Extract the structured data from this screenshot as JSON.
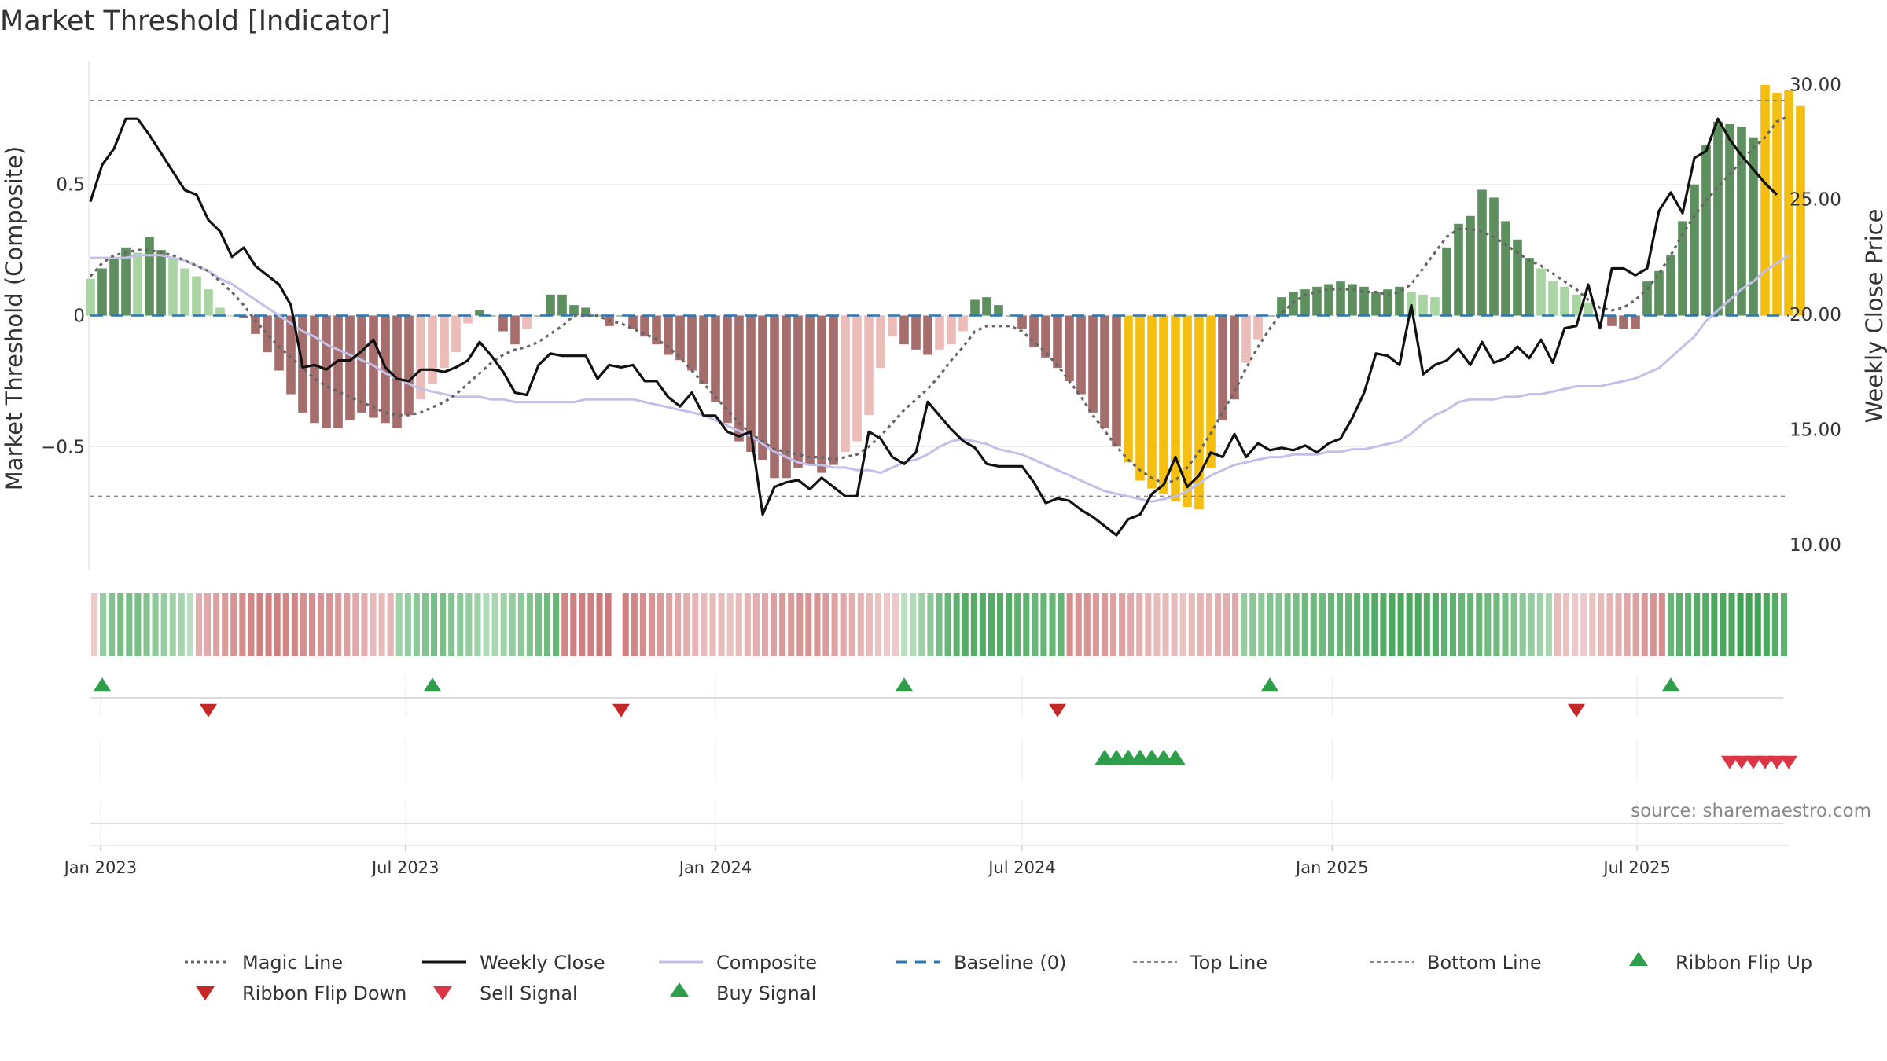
{
  "chart_data": {
    "type": "bar",
    "title": "Market Threshold [Indicator]",
    "ylabel_left": "Market Threshold (Composite)",
    "ylabel_right": "Weekly Close Price",
    "source_note": "source: sharemaestro.com",
    "left_axis": {
      "ylim": [
        -0.97,
        0.97
      ],
      "ticks": [
        0.5,
        0,
        -0.5
      ],
      "tick_labels": [
        "0.5",
        "0",
        "−0.5"
      ]
    },
    "right_axis": {
      "ylim": [
        8.9,
        31.0
      ],
      "ticks": [
        30,
        25,
        20,
        15,
        10
      ],
      "tick_labels": [
        "30.00",
        "25.00",
        "20.00",
        "15.00",
        "10.00"
      ]
    },
    "x_axis": {
      "start": "2022-12-26",
      "end": "2025-09-29",
      "ticks": [
        "2023-01-01",
        "2023-07-01",
        "2024-01-01",
        "2024-07-01",
        "2025-01-01",
        "2025-07-01"
      ],
      "tick_labels": [
        "Jan 2023",
        "Jul 2023",
        "Jan 2024",
        "Jul 2024",
        "Jan 2025",
        "Jul 2025"
      ]
    },
    "reference_lines": {
      "top_line": 0.82,
      "bottom_line": -0.69,
      "baseline": 0
    },
    "colors": {
      "bull_strong": "#5e8f5e",
      "bull_weak": "#a8d5a2",
      "bear_strong": "#a66d6d",
      "bear_weak": "#ebbcb8",
      "extreme": "#f5bf11",
      "weekly_close": "#111111",
      "composite": "#c4bfe6",
      "magic": "#666666",
      "baseline": "#2a77b4",
      "threshold_lines": "#888888",
      "buy": "#2e9e4a",
      "sell": "#dc3545"
    },
    "composite_bars": [
      0.14,
      0.18,
      0.22,
      0.26,
      0.24,
      0.3,
      0.25,
      0.22,
      0.18,
      0.15,
      0.1,
      0.03,
      0.0,
      -0.01,
      -0.07,
      -0.14,
      -0.21,
      -0.3,
      -0.37,
      -0.41,
      -0.43,
      -0.43,
      -0.4,
      -0.37,
      -0.39,
      -0.41,
      -0.43,
      -0.38,
      -0.32,
      -0.26,
      -0.2,
      -0.14,
      -0.03,
      0.02,
      0.0,
      -0.06,
      -0.11,
      -0.05,
      0.0,
      0.08,
      0.08,
      0.04,
      0.03,
      0.0,
      -0.04,
      0.0,
      -0.05,
      -0.08,
      -0.11,
      -0.15,
      -0.17,
      -0.21,
      -0.26,
      -0.33,
      -0.41,
      -0.48,
      -0.52,
      -0.55,
      -0.62,
      -0.62,
      -0.58,
      -0.57,
      -0.6,
      -0.57,
      -0.52,
      -0.48,
      -0.38,
      -0.2,
      -0.08,
      -0.11,
      -0.13,
      -0.15,
      -0.13,
      -0.11,
      -0.06,
      0.06,
      0.07,
      0.04,
      0.0,
      -0.05,
      -0.12,
      -0.16,
      -0.2,
      -0.25,
      -0.3,
      -0.37,
      -0.43,
      -0.5,
      -0.56,
      -0.63,
      -0.66,
      -0.68,
      -0.71,
      -0.73,
      -0.74,
      -0.58,
      -0.4,
      -0.32,
      -0.18,
      -0.09,
      0.0,
      0.07,
      0.09,
      0.1,
      0.11,
      0.12,
      0.13,
      0.12,
      0.11,
      0.09,
      0.1,
      0.11,
      0.09,
      0.08,
      0.07,
      0.26,
      0.35,
      0.38,
      0.48,
      0.45,
      0.36,
      0.29,
      0.22,
      0.18,
      0.13,
      0.11,
      0.08,
      0.05,
      0.0,
      -0.04,
      -0.05,
      -0.05,
      0.13,
      0.17,
      0.23,
      0.36,
      0.5,
      0.65,
      0.74,
      0.73,
      0.72,
      0.68,
      0.88,
      0.85,
      0.86,
      0.8
    ],
    "weekly_close": [
      24.9,
      26.5,
      27.2,
      28.5,
      28.5,
      27.8,
      27.0,
      26.2,
      25.4,
      25.2,
      24.1,
      23.6,
      22.5,
      22.9,
      22.1,
      21.7,
      21.3,
      20.4,
      17.7,
      17.8,
      17.6,
      18.0,
      18.0,
      18.4,
      18.9,
      17.7,
      17.2,
      17.1,
      17.6,
      17.6,
      17.5,
      17.7,
      18.0,
      18.8,
      18.2,
      17.5,
      16.6,
      16.5,
      17.8,
      18.3,
      18.2,
      18.2,
      18.2,
      17.2,
      17.8,
      17.7,
      17.8,
      17.1,
      17.1,
      16.4,
      16.0,
      16.6,
      15.6,
      15.6,
      14.9,
      14.7,
      14.9,
      11.3,
      12.5,
      12.7,
      12.8,
      12.4,
      12.9,
      12.5,
      12.1,
      12.1,
      14.9,
      14.6,
      13.8,
      13.5,
      14.0,
      16.2,
      15.6,
      15.0,
      14.5,
      14.2,
      13.5,
      13.4,
      13.4,
      13.4,
      12.7,
      11.8,
      12.0,
      11.9,
      11.5,
      11.2,
      10.8,
      10.4,
      11.1,
      11.3,
      12.2,
      12.6,
      13.8,
      12.5,
      13.0,
      14.0,
      13.8,
      14.8,
      13.8,
      14.4,
      14.1,
      14.2,
      14.1,
      14.3,
      14.0,
      14.4,
      14.6,
      15.5,
      16.6,
      18.3,
      18.2,
      17.8,
      20.4,
      17.4,
      17.8,
      18.0,
      18.5,
      17.8,
      18.8,
      17.9,
      18.1,
      18.6,
      18.1,
      18.9,
      17.9,
      19.4,
      19.5,
      21.3,
      19.4,
      22.0,
      22.0,
      21.7,
      22.0,
      24.5,
      25.3,
      24.4,
      26.8,
      27.1,
      28.5,
      27.6,
      26.9,
      26.3,
      25.7,
      25.2
    ],
    "composite_line": [
      0.22,
      0.22,
      0.22,
      0.22,
      0.23,
      0.23,
      0.23,
      0.22,
      0.21,
      0.19,
      0.17,
      0.14,
      0.12,
      0.09,
      0.06,
      0.03,
      0.0,
      -0.03,
      -0.06,
      -0.08,
      -0.11,
      -0.13,
      -0.15,
      -0.17,
      -0.19,
      -0.22,
      -0.24,
      -0.26,
      -0.28,
      -0.29,
      -0.3,
      -0.31,
      -0.31,
      -0.31,
      -0.32,
      -0.32,
      -0.33,
      -0.33,
      -0.33,
      -0.33,
      -0.33,
      -0.33,
      -0.32,
      -0.32,
      -0.32,
      -0.32,
      -0.32,
      -0.33,
      -0.34,
      -0.35,
      -0.36,
      -0.37,
      -0.38,
      -0.4,
      -0.42,
      -0.44,
      -0.46,
      -0.49,
      -0.52,
      -0.54,
      -0.56,
      -0.57,
      -0.57,
      -0.58,
      -0.58,
      -0.59,
      -0.59,
      -0.6,
      -0.58,
      -0.56,
      -0.55,
      -0.53,
      -0.5,
      -0.48,
      -0.47,
      -0.48,
      -0.49,
      -0.51,
      -0.52,
      -0.53,
      -0.55,
      -0.57,
      -0.59,
      -0.61,
      -0.63,
      -0.65,
      -0.67,
      -0.68,
      -0.69,
      -0.7,
      -0.71,
      -0.7,
      -0.69,
      -0.67,
      -0.64,
      -0.61,
      -0.59,
      -0.57,
      -0.56,
      -0.55,
      -0.54,
      -0.54,
      -0.53,
      -0.53,
      -0.53,
      -0.52,
      -0.52,
      -0.51,
      -0.51,
      -0.5,
      -0.49,
      -0.48,
      -0.45,
      -0.41,
      -0.38,
      -0.36,
      -0.33,
      -0.32,
      -0.32,
      -0.32,
      -0.31,
      -0.31,
      -0.3,
      -0.3,
      -0.29,
      -0.28,
      -0.27,
      -0.27,
      -0.27,
      -0.26,
      -0.25,
      -0.24,
      -0.22,
      -0.2,
      -0.16,
      -0.12,
      -0.08,
      -0.02,
      0.02,
      0.06,
      0.1,
      0.13,
      0.17,
      0.2,
      0.23
    ],
    "magic_line": [
      0.15,
      0.2,
      0.23,
      0.24,
      0.25,
      0.25,
      0.24,
      0.23,
      0.21,
      0.19,
      0.17,
      0.13,
      0.09,
      0.04,
      -0.02,
      -0.07,
      -0.12,
      -0.16,
      -0.2,
      -0.24,
      -0.27,
      -0.29,
      -0.31,
      -0.33,
      -0.35,
      -0.37,
      -0.38,
      -0.38,
      -0.37,
      -0.35,
      -0.33,
      -0.3,
      -0.26,
      -0.22,
      -0.18,
      -0.15,
      -0.13,
      -0.12,
      -0.1,
      -0.07,
      -0.04,
      0.0,
      0.0,
      0.0,
      -0.02,
      -0.03,
      -0.05,
      -0.07,
      -0.09,
      -0.12,
      -0.16,
      -0.21,
      -0.26,
      -0.31,
      -0.36,
      -0.41,
      -0.45,
      -0.48,
      -0.51,
      -0.52,
      -0.53,
      -0.54,
      -0.54,
      -0.55,
      -0.54,
      -0.53,
      -0.5,
      -0.46,
      -0.41,
      -0.36,
      -0.32,
      -0.28,
      -0.23,
      -0.17,
      -0.12,
      -0.06,
      -0.04,
      -0.04,
      -0.04,
      -0.06,
      -0.1,
      -0.14,
      -0.19,
      -0.25,
      -0.31,
      -0.38,
      -0.44,
      -0.5,
      -0.55,
      -0.59,
      -0.62,
      -0.64,
      -0.63,
      -0.58,
      -0.52,
      -0.45,
      -0.37,
      -0.29,
      -0.2,
      -0.12,
      -0.05,
      0.01,
      0.05,
      0.08,
      0.09,
      0.1,
      0.1,
      0.1,
      0.09,
      0.09,
      0.08,
      0.09,
      0.12,
      0.18,
      0.24,
      0.3,
      0.33,
      0.33,
      0.32,
      0.3,
      0.27,
      0.24,
      0.21,
      0.19,
      0.16,
      0.13,
      0.1,
      0.06,
      0.03,
      0.02,
      0.03,
      0.06,
      0.1,
      0.16,
      0.23,
      0.31,
      0.38,
      0.44,
      0.49,
      0.54,
      0.59,
      0.64,
      0.68,
      0.74,
      0.76
    ],
    "ribbon_shades": [
      0.2,
      0.45,
      0.55,
      0.6,
      0.6,
      0.6,
      0.55,
      0.5,
      0.45,
      0.4,
      0.35,
      0.25,
      0.4,
      0.45,
      0.5,
      0.55,
      0.6,
      0.65,
      0.7,
      0.75,
      0.75,
      0.75,
      0.7,
      0.7,
      0.65,
      0.65,
      0.6,
      0.6,
      0.55,
      0.5,
      0.45,
      0.4,
      0.3,
      0.3,
      0.35,
      0.4,
      0.45,
      0.5,
      0.55,
      0.6,
      0.6,
      0.55,
      0.5,
      0.45,
      0.4,
      0.3,
      0.35,
      0.4,
      0.45,
      0.5,
      0.55,
      0.6,
      0.65,
      0.7,
      0.7,
      0.75,
      0.75,
      0.75,
      0.8,
      0.8,
      null,
      0.75,
      0.7,
      0.65,
      0.6,
      0.55,
      0.5,
      0.45,
      0.4,
      0.35,
      0.3,
      0.3,
      0.3,
      0.25,
      0.3,
      0.35,
      0.4,
      0.45,
      0.5,
      0.55,
      0.55,
      0.6,
      0.6,
      0.6,
      0.55,
      0.5,
      0.45,
      0.4,
      0.35,
      0.3,
      0.25,
      0.2,
      0.2,
      0.25,
      0.3,
      0.4,
      0.5,
      0.6,
      0.7,
      0.75,
      0.8,
      0.8,
      0.8,
      0.8,
      0.8,
      0.8,
      0.75,
      0.75,
      0.7,
      0.7,
      0.7,
      0.7,
      0.65,
      0.6,
      0.6,
      0.55,
      0.55,
      0.5,
      0.5,
      0.45,
      0.4,
      0.35,
      0.3,
      0.3,
      0.3,
      0.25,
      0.3,
      0.35,
      0.35,
      0.4,
      0.4,
      0.45,
      0.45,
      0.5,
      0.5,
      0.55,
      0.55,
      0.6,
      0.6,
      0.65,
      0.65,
      0.65,
      0.7,
      0.7,
      0.7,
      0.75,
      0.75,
      0.8,
      0.8,
      0.85,
      0.85,
      0.85,
      0.85,
      0.8,
      0.8,
      0.75,
      0.75,
      0.7,
      0.7,
      0.7,
      0.65,
      0.65,
      0.6,
      0.55,
      0.5,
      0.45,
      0.4,
      0.35,
      0.3,
      0.25,
      0.2,
      0.2,
      0.25,
      0.3,
      0.35,
      0.4,
      0.45,
      0.5,
      0.55,
      0.6,
      0.65,
      0.7,
      0.75,
      0.75,
      0.8,
      0.8,
      0.85,
      0.85,
      0.85,
      0.9,
      0.9,
      0.9,
      0.85,
      0.8,
      0.75
    ],
    "ribbon_signs": [
      -1,
      1,
      1,
      1,
      1,
      1,
      1,
      1,
      1,
      1,
      1,
      1,
      -1,
      -1,
      -1,
      -1,
      -1,
      -1,
      -1,
      -1,
      -1,
      -1,
      -1,
      -1,
      -1,
      -1,
      -1,
      -1,
      -1,
      -1,
      -1,
      -1,
      -1,
      -1,
      -1,
      1,
      1,
      1,
      1,
      1,
      1,
      1,
      1,
      1,
      1,
      1,
      1,
      1,
      1,
      1,
      1,
      1,
      1,
      1,
      -1,
      -1,
      -1,
      -1,
      -1,
      -1,
      -1,
      -1,
      -1,
      -1,
      -1,
      -1,
      -1,
      -1,
      -1,
      -1,
      -1,
      -1,
      -1,
      -1,
      -1,
      -1,
      -1,
      -1,
      -1,
      -1,
      -1,
      -1,
      -1,
      -1,
      -1,
      -1,
      -1,
      -1,
      -1,
      -1,
      -1,
      -1,
      -1,
      1,
      1,
      1,
      1,
      1,
      1,
      1,
      1,
      1,
      1,
      1,
      1,
      1,
      1,
      1,
      1,
      1,
      1,
      1,
      -1,
      -1,
      -1,
      -1,
      -1,
      -1,
      -1,
      -1,
      -1,
      -1,
      -1,
      -1,
      -1,
      -1,
      -1,
      -1,
      -1,
      -1,
      -1,
      -1,
      1,
      1,
      1,
      1,
      1,
      1,
      1,
      1,
      1,
      1,
      1,
      1,
      1,
      1,
      1,
      1,
      1,
      1,
      1,
      1,
      1,
      1,
      1,
      1,
      1,
      1,
      1,
      1,
      1,
      1,
      1,
      1,
      1,
      1,
      1,
      1,
      -1,
      -1,
      -1,
      -1,
      -1,
      -1,
      -1,
      -1,
      -1,
      -1,
      -1,
      -1,
      -1,
      1,
      1,
      1,
      1,
      1,
      1,
      1,
      1,
      1,
      1,
      1,
      1,
      1,
      1,
      1,
      1,
      1,
      1,
      1,
      1,
      1,
      1
    ],
    "ribbon_flip_up": [
      "2023-01-02",
      "2023-07-17",
      "2024-04-22",
      "2024-11-25",
      "2025-07-21"
    ],
    "ribbon_flip_down": [
      "2023-03-06",
      "2023-11-06",
      "2024-07-22",
      "2025-05-26"
    ],
    "buy_signals": [
      "2024-08-19",
      "2024-08-26",
      "2024-09-02",
      "2024-09-09",
      "2024-09-16",
      "2024-09-23",
      "2024-09-30"
    ],
    "sell_signals": [
      "2025-08-25",
      "2025-09-01",
      "2025-09-08",
      "2025-09-15",
      "2025-09-22",
      "2025-09-29"
    ],
    "legend": [
      {
        "label": "Magic Line",
        "kind": "dotted",
        "color": "#666666"
      },
      {
        "label": "Weekly Close",
        "kind": "solid",
        "color": "#111111"
      },
      {
        "label": "Composite",
        "kind": "solid-light",
        "color": "#c4bfe6"
      },
      {
        "label": "Baseline (0)",
        "kind": "dashed",
        "color": "#2a77b4"
      },
      {
        "label": "Top Line",
        "kind": "thin-dashed",
        "color": "#888888"
      },
      {
        "label": "Bottom Line",
        "kind": "thin-dashed",
        "color": "#888888"
      },
      {
        "label": "Ribbon Flip Up",
        "kind": "tri-up",
        "color": "#2e9e4a"
      },
      {
        "label": "Ribbon Flip Down",
        "kind": "tri-down",
        "color": "#c62828"
      },
      {
        "label": "Sell Signal",
        "kind": "tri-down",
        "color": "#dc3545"
      },
      {
        "label": "Buy Signal",
        "kind": "tri-up",
        "color": "#2e9e4a"
      }
    ]
  }
}
